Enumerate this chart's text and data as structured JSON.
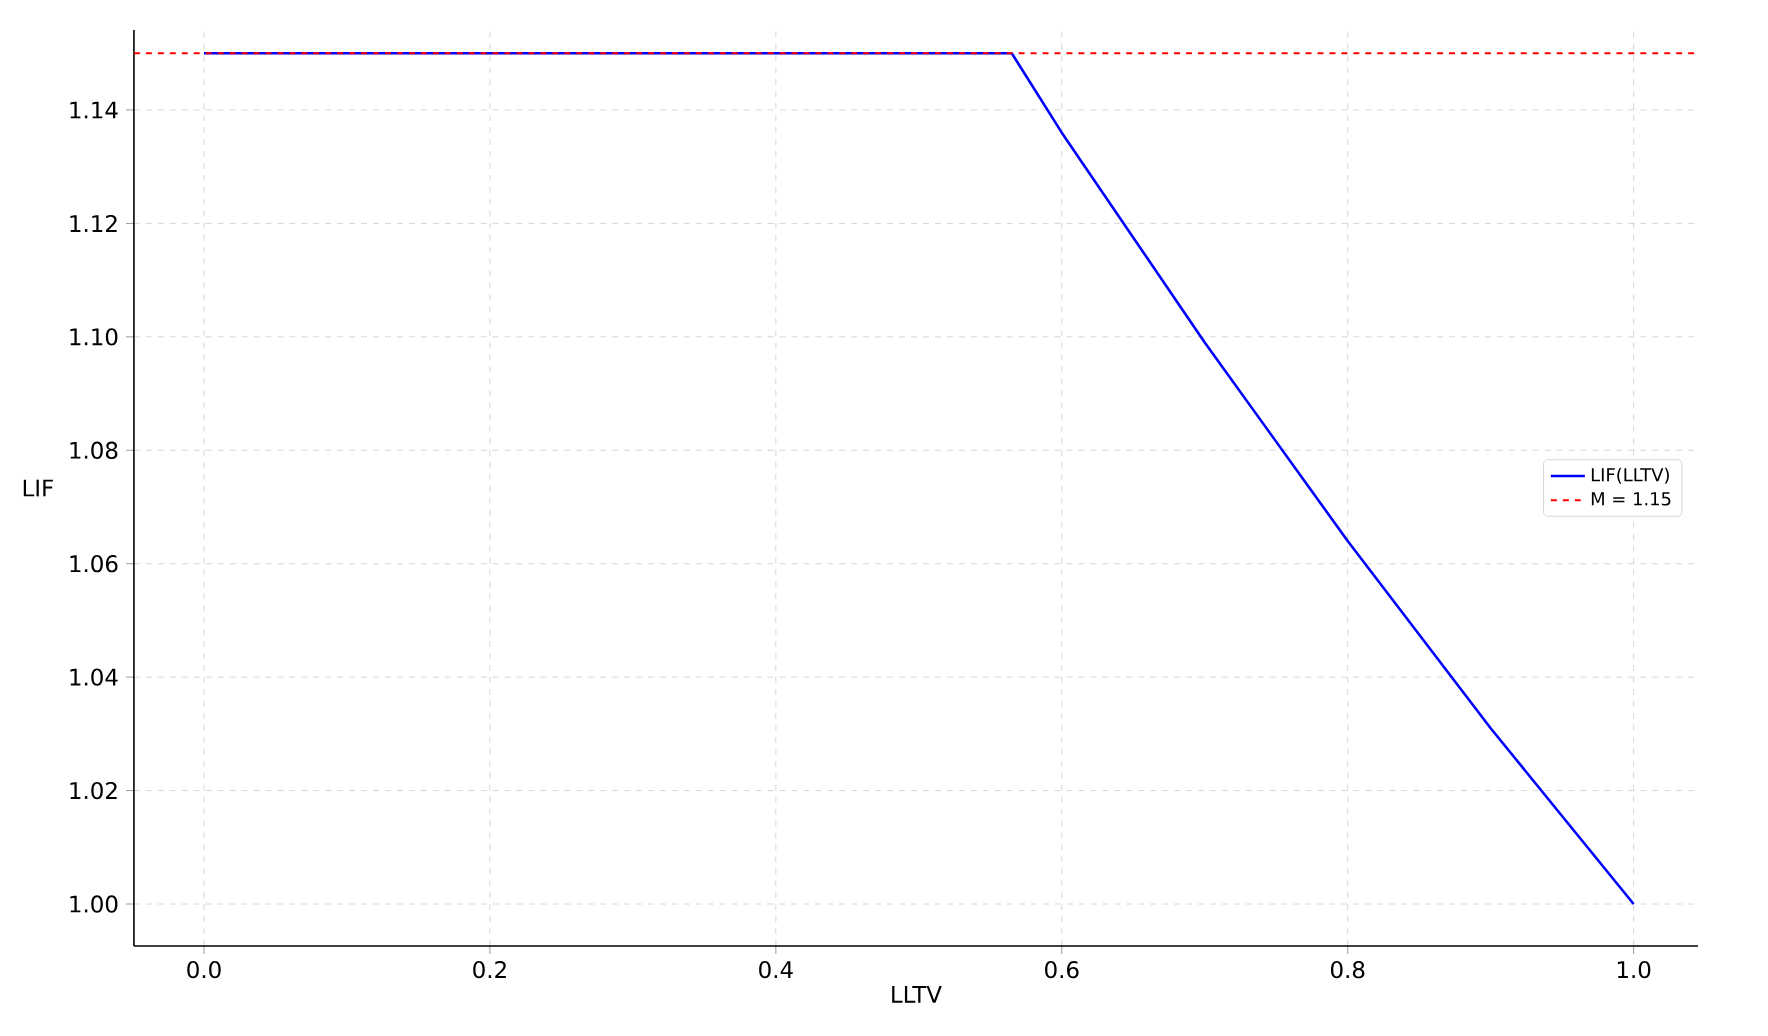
{
  "chart_data": {
    "type": "line",
    "xlabel": "LLTV",
    "ylabel": "LIF",
    "x": [
      0.0,
      0.565,
      0.6,
      0.7,
      0.8,
      0.9,
      1.0
    ],
    "series": [
      {
        "name": "LIF(LLTV)",
        "color": "#0000ff",
        "values": [
          1.15,
          1.15,
          1.136,
          1.099,
          1.064,
          1.031,
          1.0
        ]
      }
    ],
    "ref_lines": [
      {
        "axis": "y",
        "value": 1.15,
        "label": "M = 1.15",
        "color": "#ff0000",
        "line_style": "dashed"
      }
    ],
    "xlim": [
      -0.049,
      1.045
    ],
    "ylim": [
      0.9926,
      1.1541
    ],
    "xticks": [
      {
        "value": 0,
        "label": "0.0"
      },
      {
        "value": 0.2,
        "label": "0.2"
      },
      {
        "value": 0.4,
        "label": "0.4"
      },
      {
        "value": 0.6,
        "label": "0.6"
      },
      {
        "value": 0.8,
        "label": "0.8"
      },
      {
        "value": 1.0,
        "label": "1.0"
      }
    ],
    "yticks": [
      {
        "value": 1.0,
        "label": "1.00"
      },
      {
        "value": 1.02,
        "label": "1.02"
      },
      {
        "value": 1.04,
        "label": "1.04"
      },
      {
        "value": 1.06,
        "label": "1.06"
      },
      {
        "value": 1.08,
        "label": "1.08"
      },
      {
        "value": 1.1,
        "label": "1.10"
      },
      {
        "value": 1.12,
        "label": "1.12"
      },
      {
        "value": 1.14,
        "label": "1.14"
      }
    ],
    "grid": true,
    "legend": "right",
    "line_style": "solid",
    "marker": "none"
  }
}
